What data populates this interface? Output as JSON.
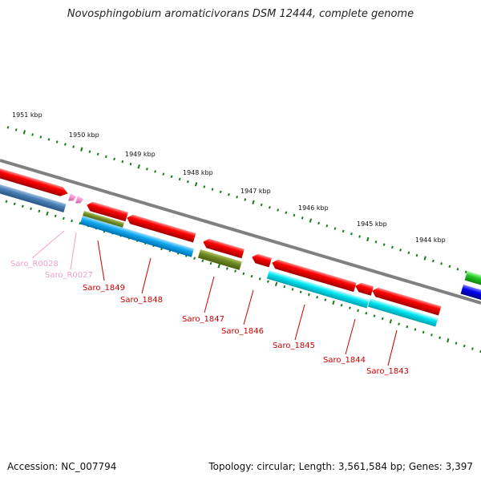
{
  "title": "Novosphingobium aromaticivorans DSM 12444, complete genome",
  "footer": {
    "accession": "Accession: NC_007794",
    "summary": "Topology: circular; Length: 3,561,584 bp; Genes: 3,397"
  },
  "ruler": [
    "1951 kbp",
    "1950 kbp",
    "1949 kbp",
    "1948 kbp",
    "1947 kbp",
    "1946 kbp",
    "1945 kbp",
    "1944 kbp"
  ],
  "genes": [
    {
      "name": "Saro_R0028",
      "color": "#f0a0cc"
    },
    {
      "name": "Saro_R0027",
      "color": "#f0a0cc"
    },
    {
      "name": "Saro_1849",
      "color": "#cc0000"
    },
    {
      "name": "Saro_1848",
      "color": "#cc0000"
    },
    {
      "name": "Saro_1847",
      "color": "#cc0000"
    },
    {
      "name": "Saro_1846",
      "color": "#cc0000"
    },
    {
      "name": "Saro_1845",
      "color": "#cc0000"
    },
    {
      "name": "Saro_1844",
      "color": "#cc0000"
    },
    {
      "name": "Saro_1843",
      "color": "#cc0000"
    }
  ]
}
